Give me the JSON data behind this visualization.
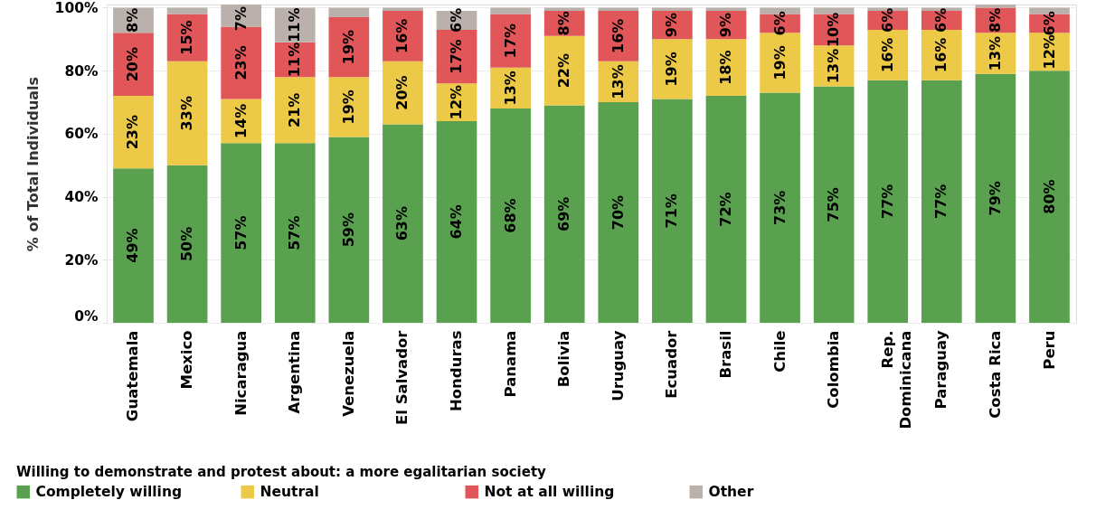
{
  "chart_data": {
    "type": "bar",
    "stacked": true,
    "ylabel": "% of Total Individuals",
    "legend_title": "Willing to demonstrate and protest about: a more egalitarian society",
    "categories": [
      "Guatemala",
      "Mexico",
      "Nicaragua",
      "Argentina",
      "Venezuela",
      "El Salvador",
      "Honduras",
      "Panama",
      "Bolivia",
      "Uruguay",
      "Ecuador",
      "Brasil",
      "Chile",
      "Colombia",
      "Rep. Dominicana",
      "Paraguay",
      "Costa Rica",
      "Peru"
    ],
    "series": [
      {
        "name": "Completely willing",
        "color": "#59a14f",
        "values": [
          49,
          50,
          57,
          57,
          59,
          63,
          64,
          68,
          69,
          70,
          71,
          72,
          73,
          75,
          77,
          77,
          79,
          80
        ],
        "value_labels": [
          "49%",
          "50%",
          "57%",
          "57%",
          "59%",
          "63%",
          "64%",
          "68%",
          "69%",
          "70%",
          "71%",
          "72%",
          "73%",
          "75%",
          "77%",
          "77%",
          "79%",
          "80%"
        ]
      },
      {
        "name": "Neutral",
        "color": "#edc948",
        "values": [
          23,
          33,
          14,
          21,
          19,
          20,
          12,
          13,
          22,
          13,
          19,
          18,
          19,
          13,
          16,
          16,
          13,
          12
        ],
        "value_labels": [
          "23%",
          "33%",
          "14%",
          "21%",
          "19%",
          "20%",
          "12%",
          "13%",
          "22%",
          "13%",
          "19%",
          "18%",
          "19%",
          "13%",
          "16%",
          "16%",
          "13%",
          "12%"
        ]
      },
      {
        "name": "Not at all willing",
        "color": "#e15759",
        "values": [
          20,
          15,
          23,
          11,
          19,
          16,
          17,
          17,
          8,
          16,
          9,
          9,
          6,
          10,
          6,
          6,
          8,
          6
        ],
        "value_labels": [
          "20%",
          "15%",
          "23%",
          "11%",
          "19%",
          "16%",
          "17%",
          "17%",
          "8%",
          "16%",
          "9%",
          "9%",
          "6%",
          "10%",
          "6%",
          "6%",
          "8%",
          "6%"
        ]
      },
      {
        "name": "Other",
        "color": "#bab0ac",
        "values": [
          8,
          2,
          7,
          11,
          3,
          1,
          6,
          2,
          1,
          1,
          1,
          1,
          2,
          2,
          1,
          1,
          1,
          2
        ],
        "value_labels": [
          "8%",
          null,
          "7%",
          "11%",
          null,
          null,
          "6%",
          null,
          null,
          null,
          null,
          null,
          null,
          null,
          null,
          null,
          null,
          null
        ]
      }
    ],
    "ylim": [
      0,
      101
    ],
    "yticks": [
      {
        "value": 0,
        "label": "0%"
      },
      {
        "value": 20,
        "label": "20%"
      },
      {
        "value": 40,
        "label": "40%"
      },
      {
        "value": 60,
        "label": "60%"
      },
      {
        "value": 80,
        "label": "80%"
      },
      {
        "value": 100,
        "label": "100%"
      }
    ],
    "grid": "y",
    "legend": "bottom"
  }
}
